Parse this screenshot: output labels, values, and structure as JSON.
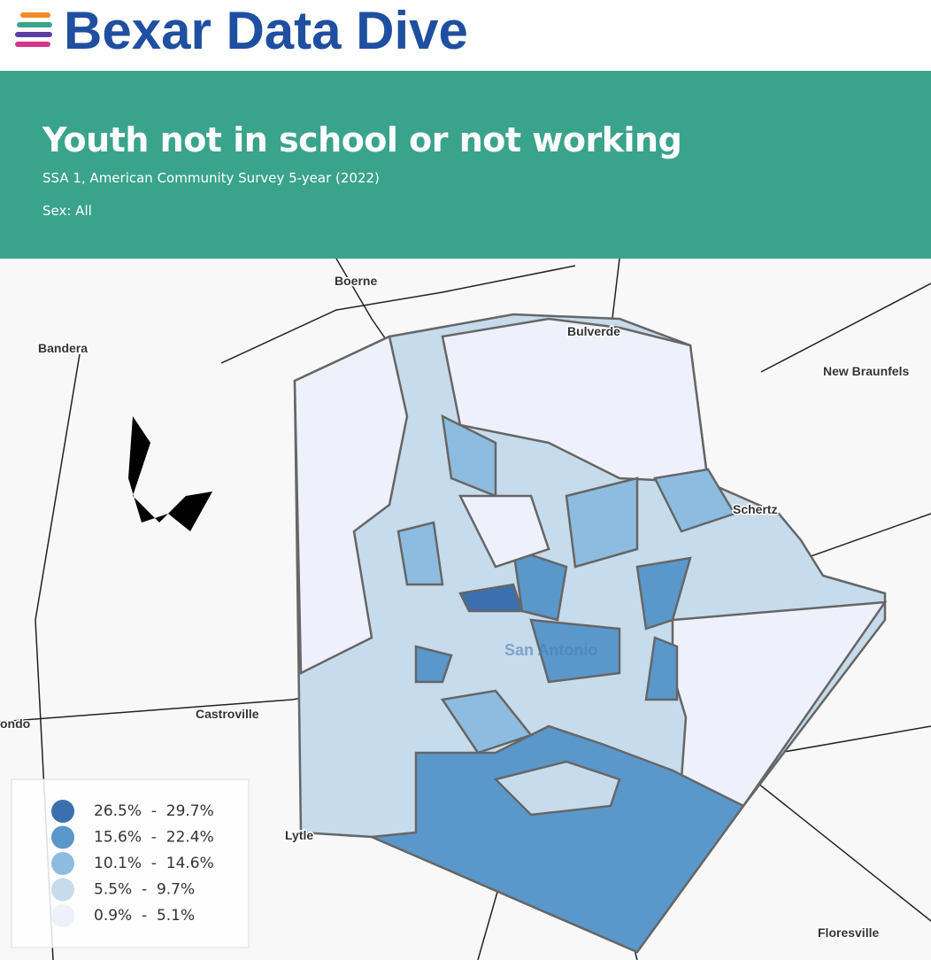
{
  "header": {
    "logo": "Bexar Data Dive"
  },
  "banner": {
    "title": "Youth not in school or not working",
    "subtitle": "SSA 1, American Community Survey 5-year (2022)",
    "filter": "Sex: All"
  },
  "map": {
    "places": [
      "Boerne",
      "Bulverde",
      "Bandera",
      "New Braunfels",
      "Schertz",
      "San Antonio",
      "Castroville",
      "ondo",
      "Lytle",
      "Floresville"
    ],
    "legend": [
      {
        "label": "26.5%  -  29.7%",
        "color": "#3a70ae"
      },
      {
        "label": "15.6%  -  22.4%",
        "color": "#5a97cb"
      },
      {
        "label": "10.1%  -  14.6%",
        "color": "#8dbce0"
      },
      {
        "label": "5.5%  -  9.7%",
        "color": "#c6dbeb"
      },
      {
        "label": "0.9%  -  5.1%",
        "color": "#eef1fc"
      }
    ]
  }
}
